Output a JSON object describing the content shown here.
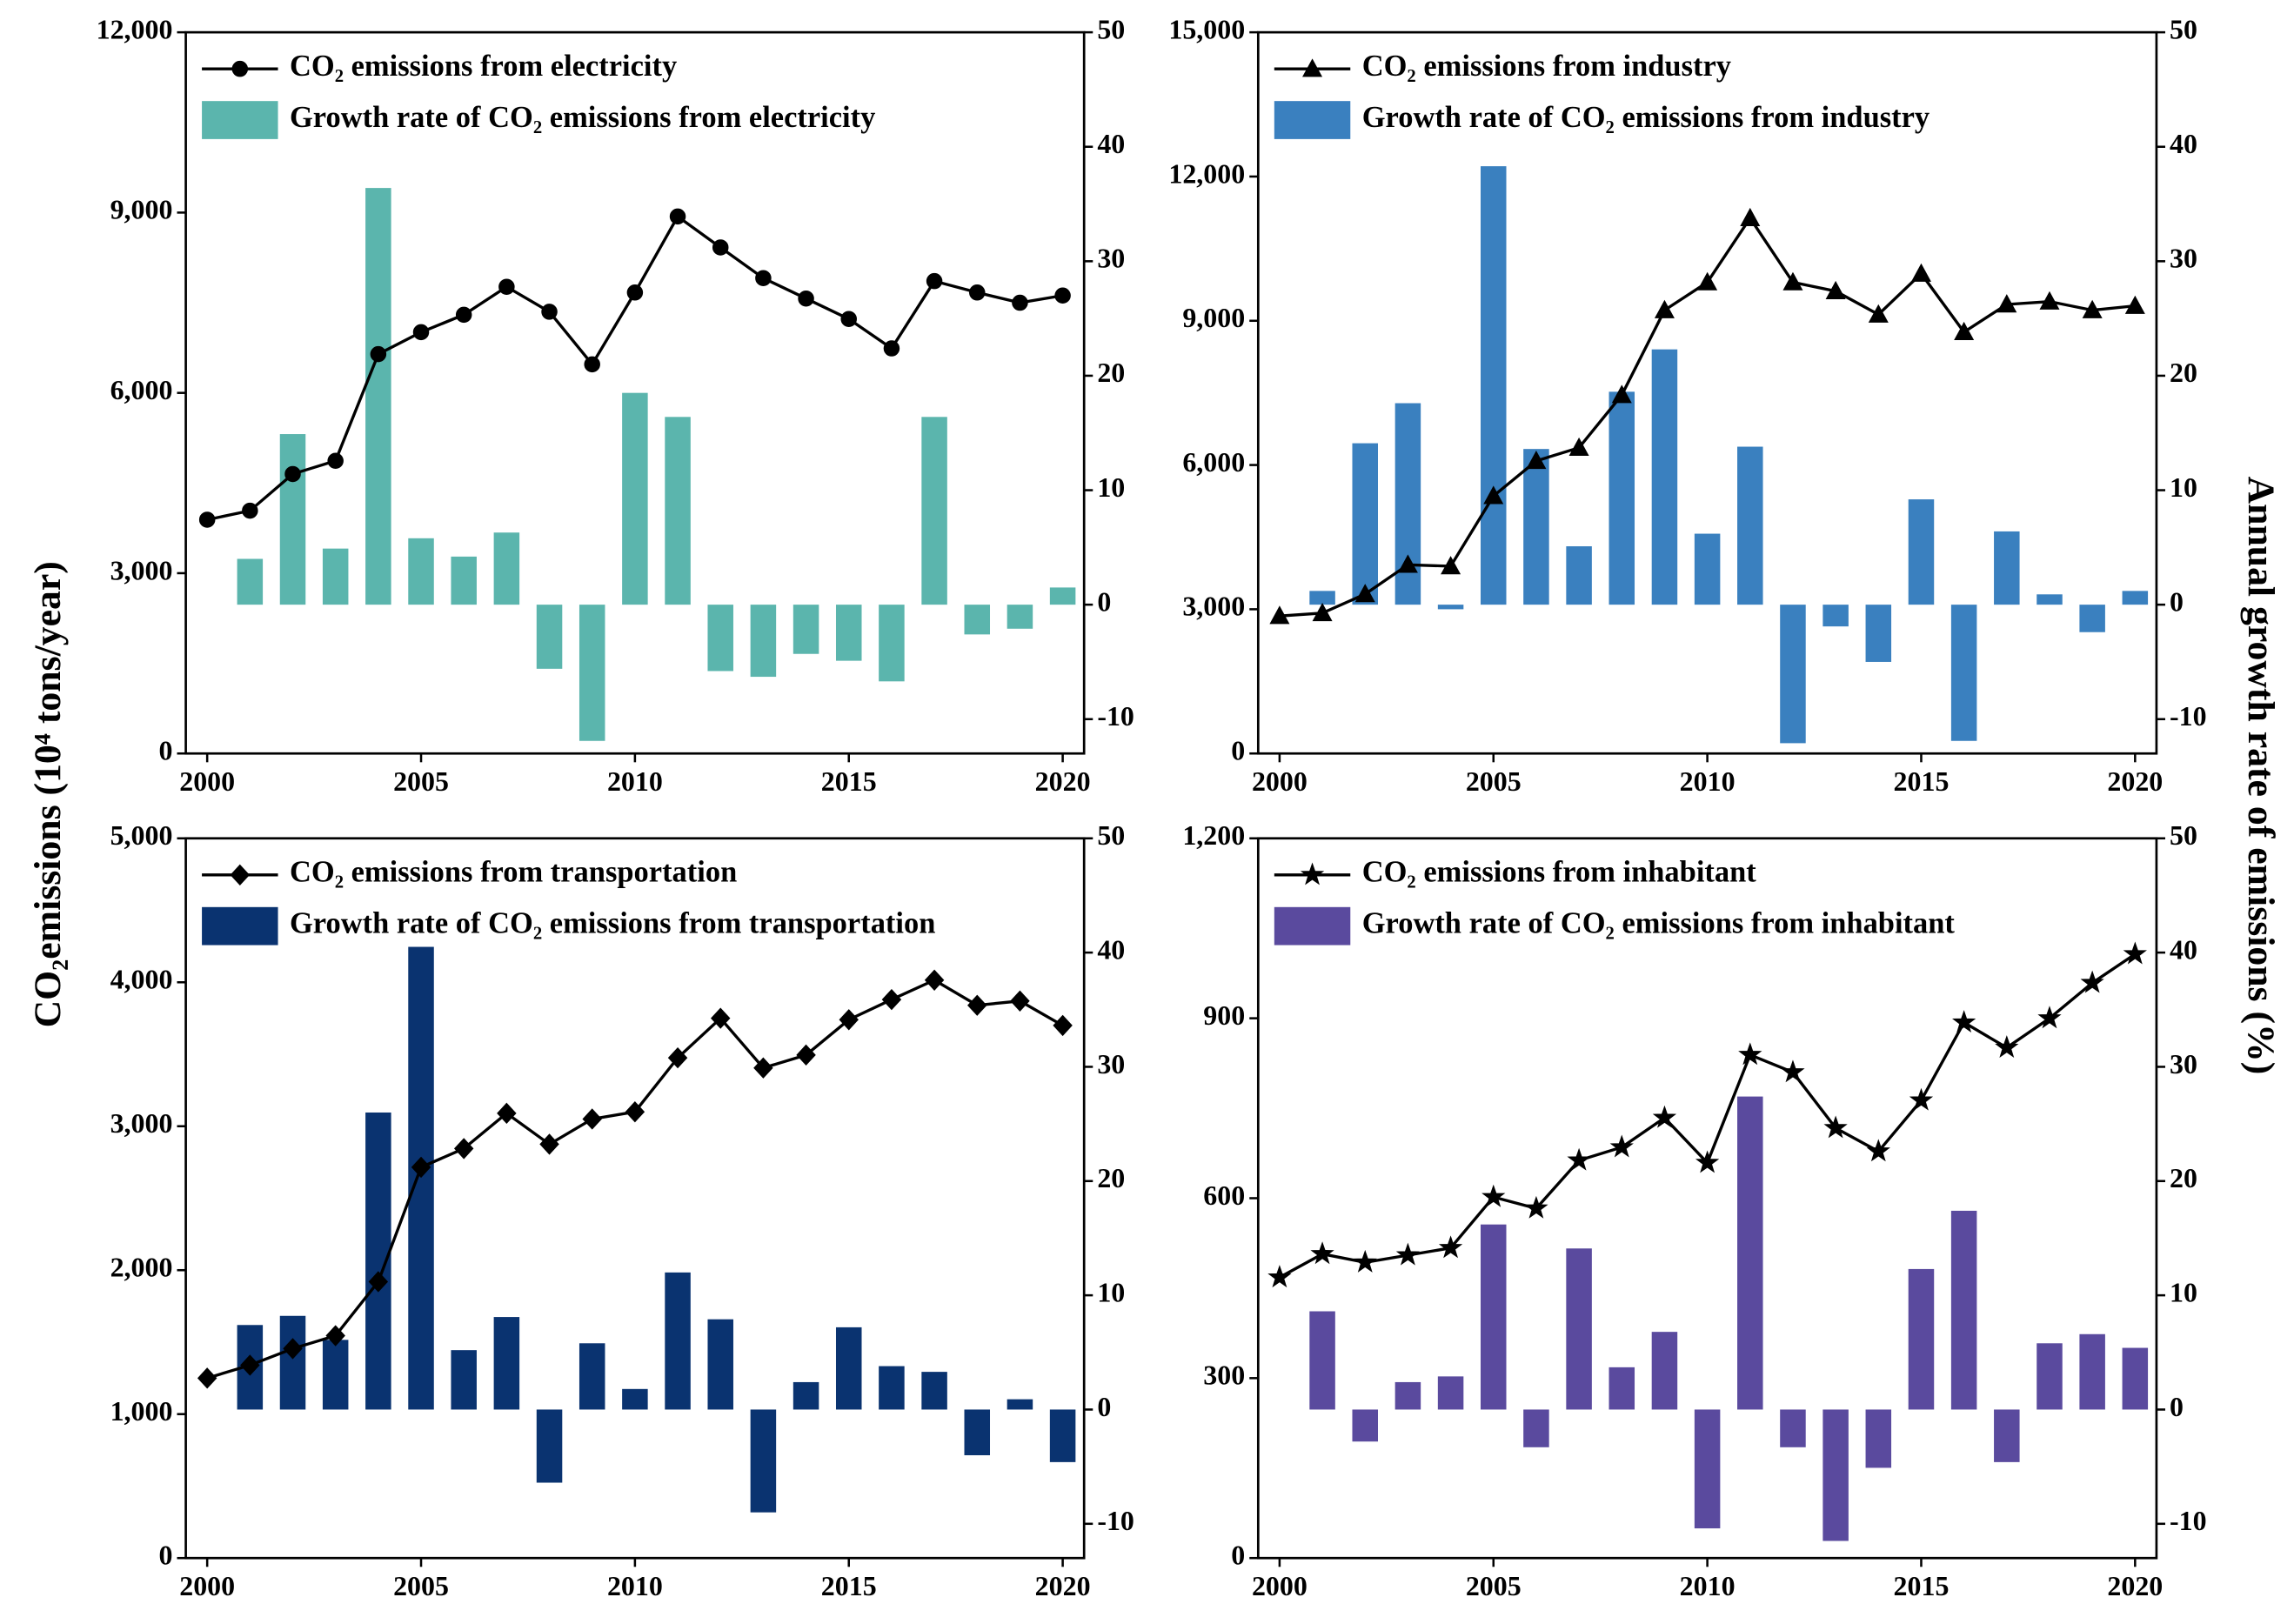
{
  "y_label": "CO₂emissions (10⁴ tons/year)",
  "y2_label": "Annual growth rate of emissions (%)",
  "chart_data": [
    {
      "type": "combo",
      "x": [
        2000,
        2001,
        2002,
        2003,
        2004,
        2005,
        2006,
        2007,
        2008,
        2009,
        2010,
        2011,
        2012,
        2013,
        2014,
        2015,
        2016,
        2017,
        2018,
        2019,
        2020
      ],
      "xlim": [
        1999.5,
        2020.5
      ],
      "xticks": [
        2000,
        2005,
        2010,
        2015,
        2020
      ],
      "ylim": [
        0,
        12000
      ],
      "yticks": [
        0,
        {
          "value": 3000,
          "label": "3,000"
        },
        {
          "value": 6000,
          "label": "6,000"
        },
        {
          "value": 9000,
          "label": "9,000"
        },
        {
          "value": 12000,
          "label": "12,000"
        }
      ],
      "y2lim": [
        -13,
        50
      ],
      "y2ticks": [
        -10,
        0,
        10,
        20,
        30,
        40,
        50
      ],
      "legend": "upper left",
      "series": [
        {
          "name": "CO₂ emissions from electricity",
          "color": "#000000",
          "marker": "circle",
          "values": [
            3890,
            4040,
            4650,
            4870,
            6645,
            7010,
            7300,
            7765,
            7350,
            6475,
            7670,
            8935,
            8420,
            7910,
            7570,
            7230,
            6740,
            7860,
            7670,
            7500,
            7620
          ]
        },
        {
          "name": "Growth rate of CO₂ emissions from electricity",
          "color": "#5bb5ad",
          "axis": "y2",
          "values": [
            null,
            4.0,
            14.9,
            4.9,
            36.4,
            5.8,
            4.2,
            6.3,
            -5.6,
            -11.9,
            18.5,
            16.4,
            -5.8,
            -6.3,
            -4.3,
            -4.9,
            -6.7,
            16.4,
            -2.6,
            -2.1,
            1.5
          ]
        }
      ]
    },
    {
      "type": "combo",
      "x": [
        2000,
        2001,
        2002,
        2003,
        2004,
        2005,
        2006,
        2007,
        2008,
        2009,
        2010,
        2011,
        2012,
        2013,
        2014,
        2015,
        2016,
        2017,
        2018,
        2019,
        2020
      ],
      "xlim": [
        1999.5,
        2020.5
      ],
      "xticks": [
        2000,
        2005,
        2010,
        2015,
        2020
      ],
      "ylim": [
        0,
        15000
      ],
      "yticks": [
        0,
        {
          "value": 3000,
          "label": "3,000"
        },
        {
          "value": 6000,
          "label": "6,000"
        },
        {
          "value": 9000,
          "label": "9,000"
        },
        {
          "value": 12000,
          "label": "12,000"
        },
        {
          "value": 15000,
          "label": "15,000"
        }
      ],
      "y2lim": [
        -13,
        50
      ],
      "y2ticks": [
        -10,
        0,
        10,
        20,
        30,
        40,
        50
      ],
      "legend": "upper left",
      "series": [
        {
          "name": "CO₂ emissions from industry",
          "color": "#000000",
          "marker": "triangle",
          "values": [
            2860,
            2920,
            3315,
            3925,
            3895,
            5355,
            6085,
            6360,
            7455,
            9220,
            9800,
            11135,
            9800,
            9615,
            9130,
            9980,
            8765,
            9340,
            9400,
            9220,
            9310
          ]
        },
        {
          "name": "Growth rate of CO₂ emissions from industry",
          "color": "#3a80bf",
          "axis": "y2",
          "values": [
            null,
            1.2,
            14.1,
            17.6,
            -0.4,
            38.3,
            13.6,
            5.1,
            18.6,
            22.3,
            6.2,
            13.8,
            -12.1,
            -1.9,
            -5.0,
            9.2,
            -11.9,
            6.4,
            0.9,
            -2.4,
            1.2
          ]
        }
      ]
    },
    {
      "type": "combo",
      "x": [
        2000,
        2001,
        2002,
        2003,
        2004,
        2005,
        2006,
        2007,
        2008,
        2009,
        2010,
        2011,
        2012,
        2013,
        2014,
        2015,
        2016,
        2017,
        2018,
        2019,
        2020
      ],
      "xlim": [
        1999.5,
        2020.5
      ],
      "xticks": [
        2000,
        2005,
        2010,
        2015,
        2020
      ],
      "ylim": [
        0,
        5000
      ],
      "yticks": [
        0,
        {
          "value": 1000,
          "label": "1,000"
        },
        {
          "value": 2000,
          "label": "2,000"
        },
        {
          "value": 3000,
          "label": "3,000"
        },
        {
          "value": 4000,
          "label": "4,000"
        },
        {
          "value": 5000,
          "label": "5,000"
        }
      ],
      "y2lim": [
        -13,
        50
      ],
      "y2ticks": [
        -10,
        0,
        10,
        20,
        30,
        40,
        50
      ],
      "legend": "upper left",
      "series": [
        {
          "name": "CO₂ emissions from transportation",
          "color": "#000000",
          "marker": "diamond",
          "values": [
            1250,
            1340,
            1455,
            1545,
            1920,
            2715,
            2845,
            3090,
            2875,
            3050,
            3100,
            3475,
            3750,
            3405,
            3495,
            3740,
            3880,
            4015,
            3840,
            3870,
            3700
          ]
        },
        {
          "name": "Growth rate of CO₂ emissions from transportation",
          "color": "#0a3370",
          "axis": "y2",
          "values": [
            null,
            7.4,
            8.2,
            6.1,
            26.0,
            40.5,
            5.2,
            8.1,
            -6.4,
            5.8,
            1.8,
            12.0,
            7.9,
            -9.0,
            2.4,
            7.2,
            3.8,
            3.3,
            -4.0,
            0.9,
            -4.6
          ]
        }
      ]
    },
    {
      "type": "combo",
      "x": [
        2000,
        2001,
        2002,
        2003,
        2004,
        2005,
        2006,
        2007,
        2008,
        2009,
        2010,
        2011,
        2012,
        2013,
        2014,
        2015,
        2016,
        2017,
        2018,
        2019,
        2020
      ],
      "xlim": [
        1999.5,
        2020.5
      ],
      "xticks": [
        2000,
        2005,
        2010,
        2015,
        2020
      ],
      "ylim": [
        0,
        1200
      ],
      "yticks": [
        0,
        300,
        600,
        900,
        {
          "value": 1200,
          "label": "1,200"
        }
      ],
      "y2lim": [
        -13,
        50
      ],
      "y2ticks": [
        -10,
        0,
        10,
        20,
        30,
        40,
        50
      ],
      "legend": "upper left",
      "series": [
        {
          "name": "CO₂ emissions from inhabitant",
          "color": "#000000",
          "marker": "star",
          "values": [
            468,
            507,
            493,
            505,
            517,
            602,
            583,
            663,
            685,
            734,
            659,
            839,
            810,
            717,
            678,
            763,
            893,
            851,
            900,
            959,
            1007
          ]
        },
        {
          "name": "Growth rate of CO₂ emissions from inhabitant",
          "color": "#5a4a9e",
          "axis": "y2",
          "values": [
            null,
            8.6,
            -2.8,
            2.4,
            2.9,
            16.2,
            -3.3,
            14.1,
            3.7,
            6.8,
            -10.4,
            27.4,
            -3.3,
            -11.5,
            -5.1,
            12.3,
            17.4,
            -4.6,
            5.8,
            6.6,
            5.4
          ]
        }
      ]
    }
  ]
}
